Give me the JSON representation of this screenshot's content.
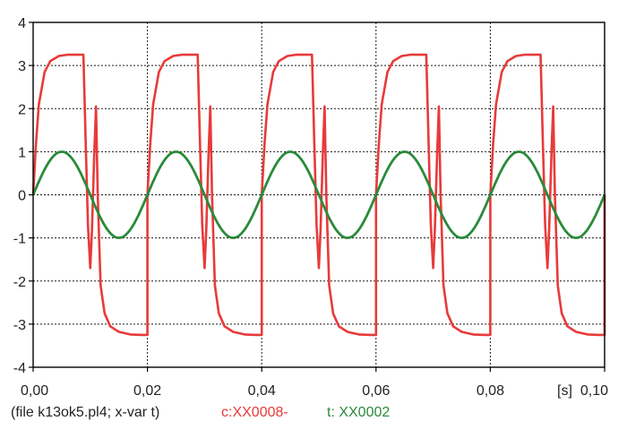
{
  "chart_data": {
    "type": "line",
    "title": "",
    "xlabel": "",
    "ylabel": "",
    "x_unit_label": "[s]",
    "xlim": [
      0,
      0.1
    ],
    "ylim": [
      -4,
      4
    ],
    "x_ticks": [
      "0,00",
      "0,02",
      "0,04",
      "0,06",
      "0,08",
      "0,10"
    ],
    "y_ticks": [
      "-4",
      "-3",
      "-2",
      "-1",
      "0",
      "1",
      "2",
      "3",
      "4"
    ],
    "grid": true,
    "series": [
      {
        "name": "XX0008-",
        "color": "#e83a3a",
        "x": [
          0.0,
          0.0005,
          0.001,
          0.002,
          0.003,
          0.0045,
          0.006,
          0.008,
          0.0088,
          0.0092,
          0.0096,
          0.01,
          0.0103,
          0.0107,
          0.011,
          0.0113,
          0.0118,
          0.0125,
          0.0135,
          0.015,
          0.017,
          0.019,
          0.02,
          0.02
        ],
        "y": [
          0.0,
          1.2,
          2.1,
          2.85,
          3.1,
          3.22,
          3.25,
          3.25,
          3.25,
          1.2,
          -0.7,
          -1.7,
          -0.8,
          1.0,
          2.05,
          0.0,
          -2.1,
          -2.75,
          -3.05,
          -3.18,
          -3.24,
          -3.25,
          -3.25,
          0.0
        ]
      },
      {
        "name": "XX0002",
        "color": "#2a8a3a",
        "function": "sin(2*pi*50*t)",
        "frequency_hz": 50,
        "amplitude": 1.0
      }
    ]
  },
  "footer": {
    "file_note": "(file k13ok5.pl4; x-var t)",
    "red_series_label": "c:XX0008-",
    "green_series_label": "t: XX0002"
  }
}
